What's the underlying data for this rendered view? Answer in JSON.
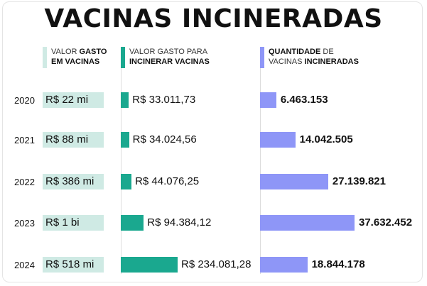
{
  "title": "VACINAS INCINERADAS",
  "columns": {
    "gasto": {
      "line1_pre": "VALOR ",
      "line1_bold": "GASTO",
      "line2_bold": "EM VACINAS"
    },
    "incinerar": {
      "line1_pre": "VALOR GASTO PARA",
      "line2_bold": "INCINERAR VACINAS"
    },
    "quantidade": {
      "line1_bold": "QUANTIDADE",
      "line1_post": " DE",
      "line2_pre": "VACINAS ",
      "line2_bold": "INCINERADAS"
    }
  },
  "colors": {
    "gasto": "#cfeae4",
    "incinerar": "#1aa88f",
    "quantidade": "#8e96f7"
  },
  "chart_data": {
    "type": "bar",
    "categories": [
      "2020",
      "2021",
      "2022",
      "2023",
      "2024"
    ],
    "valor_gasto_em_vacinas": [
      "R$ 22 mi",
      "R$ 88 mi",
      "R$ 386 mi",
      "R$ 1 bi",
      "R$ 518 mi"
    ],
    "series": [
      {
        "values": [
          33011.73,
          34024.56,
          44076.25,
          94384.12,
          234081.28
        ],
        "labels": [
          "R$ 33.011,73",
          "R$ 34.024,56",
          "R$ 44.076,25",
          "R$ 94.384,12",
          "R$ 234.081,28"
        ]
      },
      {
        "values": [
          6463153,
          14042505,
          27139821,
          37632452,
          18844178
        ],
        "labels": [
          "6.463.153",
          "14.042.505",
          "27.139.821",
          "37.632.452",
          "18.844.178"
        ]
      }
    ]
  }
}
